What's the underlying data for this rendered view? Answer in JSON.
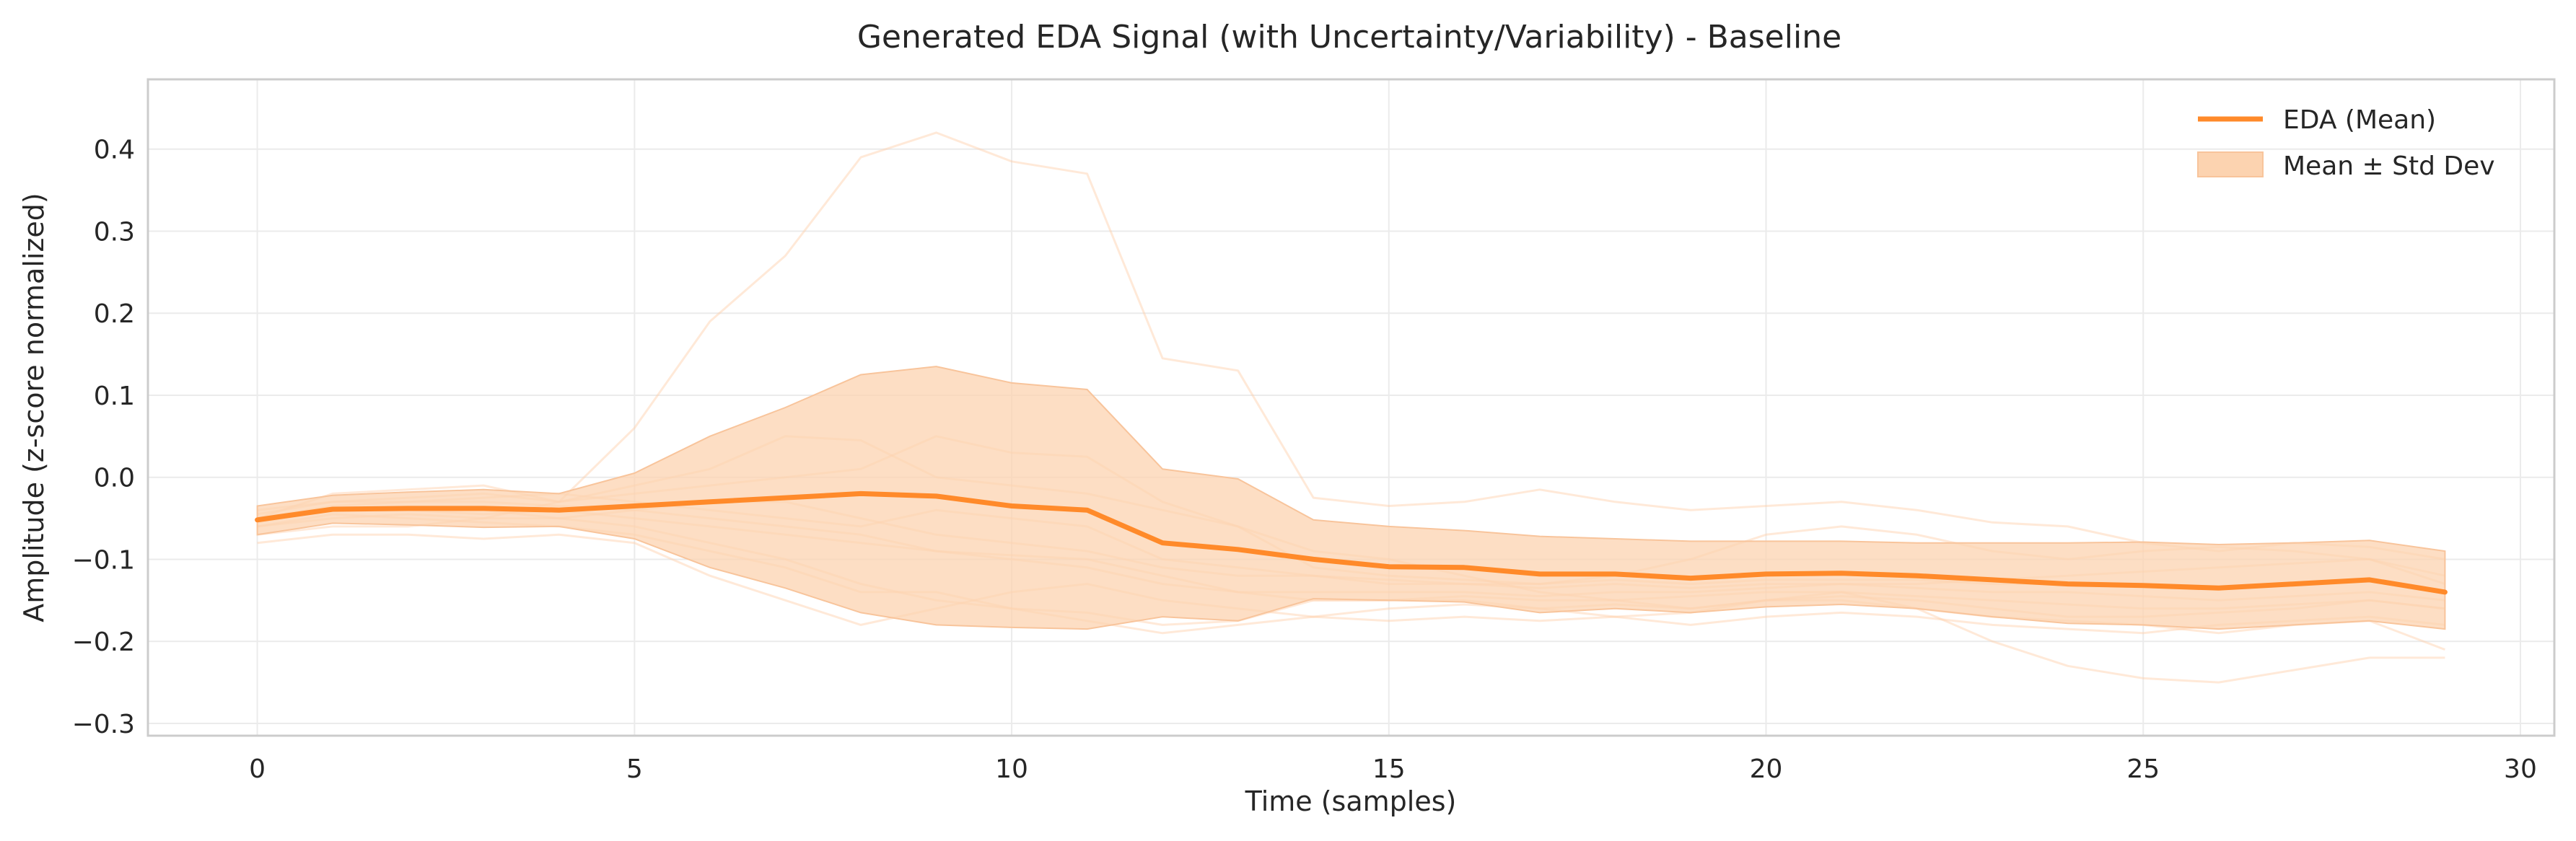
{
  "chart_data": {
    "type": "line",
    "title": "Generated EDA Signal (with Uncertainty/Variability) - Baseline",
    "xlabel": "Time (samples)",
    "ylabel": "Amplitude (z-score normalized)",
    "xlim": [
      -1.45,
      30.45
    ],
    "ylim": [
      -0.315,
      0.485
    ],
    "xticks": [
      0,
      5,
      10,
      15,
      20,
      25,
      30
    ],
    "xtick_labels": [
      "0",
      "5",
      "10",
      "15",
      "20",
      "25",
      "30"
    ],
    "yticks": [
      -0.3,
      -0.2,
      -0.1,
      0.0,
      0.1,
      0.2,
      0.3,
      0.4
    ],
    "ytick_labels": [
      "−0.3",
      "−0.2",
      "−0.1",
      "0.0",
      "0.1",
      "0.2",
      "0.3",
      "0.4"
    ],
    "grid": true,
    "legend_position": "top-right",
    "legend": [
      "EDA (Mean)",
      "Mean ± Std Dev"
    ],
    "colors": {
      "mean": "#ff8a2a",
      "band": "#fcd3b0",
      "samples": "#ffcfa8"
    },
    "x": [
      0,
      1,
      2,
      3,
      4,
      5,
      6,
      7,
      8,
      9,
      10,
      11,
      12,
      13,
      14,
      15,
      16,
      17,
      18,
      19,
      20,
      21,
      22,
      23,
      24,
      25,
      26,
      27,
      28,
      29
    ],
    "series": [
      {
        "name": "EDA (Mean)",
        "values": [
          -0.052,
          -0.039,
          -0.038,
          -0.038,
          -0.04,
          -0.035,
          -0.03,
          -0.025,
          -0.02,
          -0.023,
          -0.035,
          -0.04,
          -0.08,
          -0.088,
          -0.1,
          -0.109,
          -0.11,
          -0.118,
          -0.118,
          -0.123,
          -0.118,
          -0.117,
          -0.12,
          -0.125,
          -0.13,
          -0.132,
          -0.135,
          -0.13,
          -0.125,
          -0.14
        ]
      },
      {
        "name": "Mean ± Std Dev",
        "upper": [
          -0.035,
          -0.022,
          -0.018,
          -0.015,
          -0.02,
          0.005,
          0.05,
          0.085,
          0.125,
          0.135,
          0.115,
          0.107,
          0.01,
          -0.002,
          -0.052,
          -0.06,
          -0.065,
          -0.072,
          -0.075,
          -0.078,
          -0.078,
          -0.078,
          -0.08,
          -0.08,
          -0.08,
          -0.079,
          -0.082,
          -0.08,
          -0.077,
          -0.09
        ],
        "lower": [
          -0.07,
          -0.056,
          -0.058,
          -0.061,
          -0.06,
          -0.075,
          -0.11,
          -0.135,
          -0.165,
          -0.18,
          -0.183,
          -0.185,
          -0.17,
          -0.175,
          -0.148,
          -0.15,
          -0.152,
          -0.165,
          -0.16,
          -0.165,
          -0.158,
          -0.155,
          -0.16,
          -0.17,
          -0.178,
          -0.18,
          -0.185,
          -0.18,
          -0.175,
          -0.185
        ]
      }
    ],
    "samples": [
      [
        -0.07,
        -0.06,
        -0.06,
        -0.05,
        -0.03,
        0.06,
        0.19,
        0.27,
        0.39,
        0.42,
        0.385,
        0.37,
        0.145,
        0.13,
        -0.025,
        -0.035,
        -0.03,
        -0.015,
        -0.03,
        -0.04,
        -0.035,
        -0.03,
        -0.04,
        -0.055,
        -0.06,
        -0.08,
        -0.09,
        -0.08,
        -0.085,
        -0.1
      ],
      [
        -0.05,
        -0.02,
        -0.015,
        -0.01,
        -0.03,
        -0.01,
        0.01,
        0.05,
        0.045,
        0.0,
        -0.01,
        -0.02,
        -0.04,
        -0.06,
        -0.09,
        -0.1,
        -0.12,
        -0.14,
        -0.15,
        -0.16,
        -0.15,
        -0.14,
        -0.16,
        -0.2,
        -0.23,
        -0.245,
        -0.25,
        -0.235,
        -0.22,
        -0.22
      ],
      [
        -0.04,
        -0.03,
        -0.025,
        -0.02,
        -0.03,
        -0.02,
        -0.01,
        0.0,
        0.01,
        0.05,
        0.03,
        0.025,
        -0.03,
        -0.06,
        -0.11,
        -0.12,
        -0.125,
        -0.13,
        -0.12,
        -0.1,
        -0.07,
        -0.06,
        -0.07,
        -0.09,
        -0.1,
        -0.09,
        -0.085,
        -0.09,
        -0.1,
        -0.13
      ],
      [
        -0.06,
        -0.05,
        -0.045,
        -0.05,
        -0.05,
        -0.06,
        -0.08,
        -0.1,
        -0.13,
        -0.15,
        -0.16,
        -0.165,
        -0.18,
        -0.175,
        -0.15,
        -0.15,
        -0.15,
        -0.16,
        -0.155,
        -0.16,
        -0.15,
        -0.145,
        -0.15,
        -0.16,
        -0.17,
        -0.17,
        -0.165,
        -0.16,
        -0.15,
        -0.16
      ],
      [
        -0.05,
        -0.04,
        -0.04,
        -0.045,
        -0.04,
        -0.05,
        -0.06,
        -0.07,
        -0.08,
        -0.09,
        -0.095,
        -0.1,
        -0.12,
        -0.14,
        -0.15,
        -0.15,
        -0.145,
        -0.15,
        -0.15,
        -0.145,
        -0.14,
        -0.14,
        -0.145,
        -0.15,
        -0.155,
        -0.16,
        -0.16,
        -0.155,
        -0.15,
        -0.16
      ],
      [
        -0.08,
        -0.07,
        -0.07,
        -0.075,
        -0.07,
        -0.08,
        -0.12,
        -0.15,
        -0.18,
        -0.16,
        -0.14,
        -0.13,
        -0.15,
        -0.16,
        -0.17,
        -0.16,
        -0.155,
        -0.16,
        -0.17,
        -0.165,
        -0.15,
        -0.15,
        -0.16,
        -0.17,
        -0.175,
        -0.18,
        -0.19,
        -0.18,
        -0.175,
        -0.21
      ],
      [
        -0.045,
        -0.03,
        -0.03,
        -0.025,
        -0.02,
        -0.03,
        -0.04,
        -0.05,
        -0.06,
        -0.04,
        -0.05,
        -0.06,
        -0.1,
        -0.11,
        -0.12,
        -0.13,
        -0.13,
        -0.135,
        -0.13,
        -0.135,
        -0.13,
        -0.13,
        -0.13,
        -0.125,
        -0.12,
        -0.115,
        -0.11,
        -0.105,
        -0.1,
        -0.12
      ],
      [
        -0.06,
        -0.045,
        -0.05,
        -0.055,
        -0.06,
        -0.07,
        -0.09,
        -0.11,
        -0.14,
        -0.14,
        -0.16,
        -0.175,
        -0.19,
        -0.18,
        -0.17,
        -0.175,
        -0.17,
        -0.175,
        -0.17,
        -0.18,
        -0.17,
        -0.165,
        -0.17,
        -0.18,
        -0.185,
        -0.19,
        -0.18,
        -0.175,
        -0.17,
        -0.18
      ],
      [
        -0.055,
        -0.04,
        -0.04,
        -0.04,
        -0.05,
        -0.04,
        -0.03,
        -0.03,
        -0.05,
        -0.07,
        -0.08,
        -0.09,
        -0.11,
        -0.12,
        -0.12,
        -0.125,
        -0.13,
        -0.13,
        -0.125,
        -0.13,
        -0.125,
        -0.125,
        -0.125,
        -0.13,
        -0.13,
        -0.13,
        -0.135,
        -0.13,
        -0.125,
        -0.14
      ],
      [
        -0.05,
        -0.035,
        -0.03,
        -0.03,
        -0.035,
        -0.04,
        -0.05,
        -0.06,
        -0.07,
        -0.09,
        -0.1,
        -0.11,
        -0.13,
        -0.14,
        -0.14,
        -0.14,
        -0.14,
        -0.145,
        -0.14,
        -0.14,
        -0.135,
        -0.13,
        -0.135,
        -0.14,
        -0.14,
        -0.145,
        -0.15,
        -0.145,
        -0.14,
        -0.15
      ]
    ]
  }
}
